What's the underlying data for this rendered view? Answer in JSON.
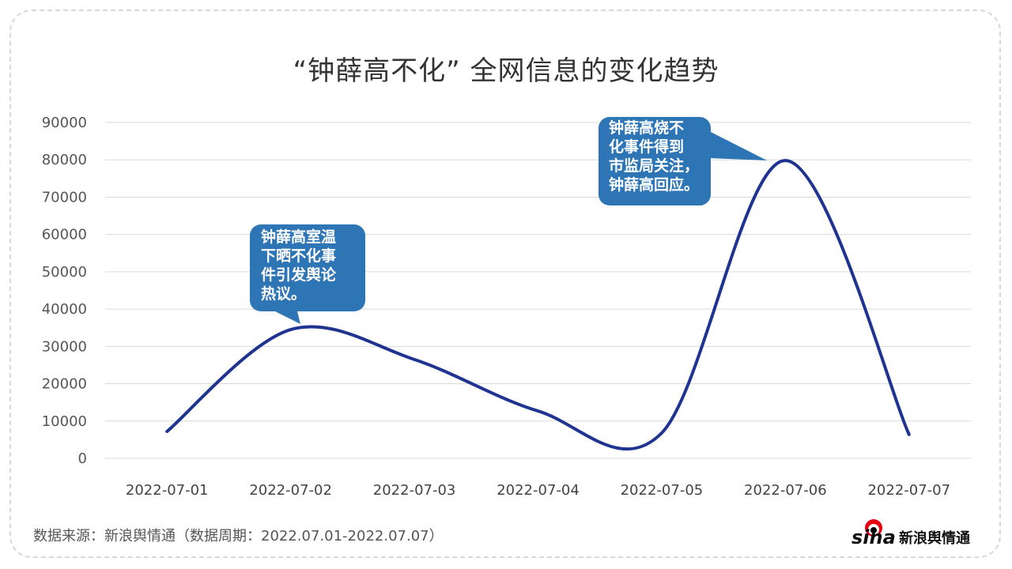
{
  "chart_data": {
    "type": "line",
    "title": "“钟薛高不化”  全网信息的变化趋势",
    "categories": [
      "2022-07-01",
      "2022-07-02",
      "2022-07-03",
      "2022-07-04",
      "2022-07-05",
      "2022-07-06",
      "2022-07-07"
    ],
    "series": [
      {
        "values": [
          7200,
          34500,
          26500,
          12700,
          6800,
          79800,
          6400
        ],
        "color": "#1f3390"
      }
    ],
    "ylim": [
      0,
      90000
    ],
    "yticks": [
      "0",
      "10000",
      "20000",
      "30000",
      "40000",
      "50000",
      "60000",
      "70000",
      "80000",
      "90000"
    ],
    "smooth": true,
    "grid": true,
    "annotations": [
      {
        "category": "2022-07-02",
        "lines": [
          "钟薛高室温",
          "下晒不化事",
          "件引发舆论",
          "热议。"
        ]
      },
      {
        "category": "2022-07-06",
        "lines": [
          "钟薛高烧不",
          "化事件得到",
          "市监局关注，",
          "钟薛高回应。"
        ]
      }
    ],
    "annotation_color": "#2e75b6"
  },
  "source": "数据来源：新浪舆情通（数据周期：2022.07.01-2022.07.07）",
  "logo": {
    "text": "sina新浪舆情通"
  }
}
